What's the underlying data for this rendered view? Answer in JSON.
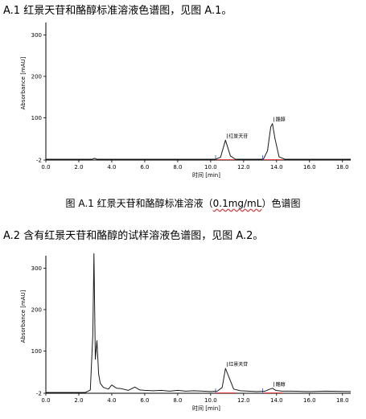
{
  "section1_text": "A.1 红景天苷和酪醇标准溶液色谱图，见图 A.1。",
  "figure1_caption": {
    "prefix": "图 A.1 红景天苷和酪醇标准溶液（",
    "units": "0.1mg/mL",
    "suffix": "）色谱图"
  },
  "section2_text": "A.2 含有红景天苷和酪醇的试样溶液色谱图，见图 A.2。",
  "chart_data": [
    {
      "type": "line",
      "ylabel": "Absorbance [mAU]",
      "xlabel": "时间 [min]",
      "x_ticks": [
        "0.0",
        "2.0",
        "4.0",
        "6.0",
        "8.0",
        "10.0",
        "12.0",
        "14.0",
        "16.0",
        "18.0"
      ],
      "y_ticks": [
        "300",
        "200",
        "100",
        "-2"
      ],
      "xlim": [
        0,
        18.5
      ],
      "ylim": [
        -2,
        330
      ],
      "peaks": [
        {
          "label": "红景天苷",
          "rt": 10.9,
          "height": 46
        },
        {
          "label": "酪醇",
          "rt": 13.75,
          "height": 86
        }
      ],
      "trace": {
        "x": [
          0,
          2.8,
          2.95,
          3.1,
          10.3,
          10.6,
          10.9,
          11.2,
          11.5,
          13.2,
          13.45,
          13.65,
          13.75,
          13.9,
          14.15,
          14.5,
          18.5
        ],
        "y": [
          0,
          0,
          2,
          0,
          0,
          5,
          46,
          8,
          0,
          0,
          20,
          78,
          86,
          50,
          6,
          0,
          0
        ]
      }
    },
    {
      "type": "line",
      "ylabel": "Absorbance [mAU]",
      "xlabel": "时间 [min]",
      "x_ticks": [
        "0.0",
        "2.0",
        "4.0",
        "6.0",
        "8.0",
        "10.0",
        "12.0",
        "14.0",
        "16.0",
        "18.0"
      ],
      "y_ticks": [
        "300",
        "200",
        "100",
        "-2"
      ],
      "xlim": [
        0,
        18.5
      ],
      "ylim": [
        -2,
        330
      ],
      "peaks": [
        {
          "label": "红景天苷",
          "rt": 10.9,
          "height": 58
        },
        {
          "label": "酪醇",
          "rt": 13.75,
          "height": 10
        }
      ],
      "trace": {
        "x": [
          0,
          2.4,
          2.7,
          2.85,
          2.92,
          3.0,
          3.1,
          3.2,
          3.3,
          3.5,
          3.8,
          4.0,
          4.3,
          4.6,
          5.0,
          5.4,
          5.7,
          6.0,
          6.5,
          7.0,
          7.5,
          8.0,
          8.5,
          9.0,
          9.5,
          10.0,
          10.4,
          10.7,
          10.9,
          11.1,
          11.4,
          11.8,
          12.3,
          12.8,
          13.3,
          13.6,
          13.75,
          13.95,
          14.3,
          15.0,
          16.0,
          17.0,
          18.5
        ],
        "y": [
          0,
          0,
          6,
          140,
          335,
          80,
          125,
          45,
          22,
          12,
          8,
          18,
          10,
          9,
          5,
          13,
          6,
          5,
          4,
          5,
          3,
          5,
          3,
          4,
          3,
          2,
          3,
          12,
          58,
          38,
          8,
          4,
          3,
          2,
          3,
          8,
          10,
          5,
          3,
          3,
          2,
          3,
          2
        ]
      }
    }
  ]
}
